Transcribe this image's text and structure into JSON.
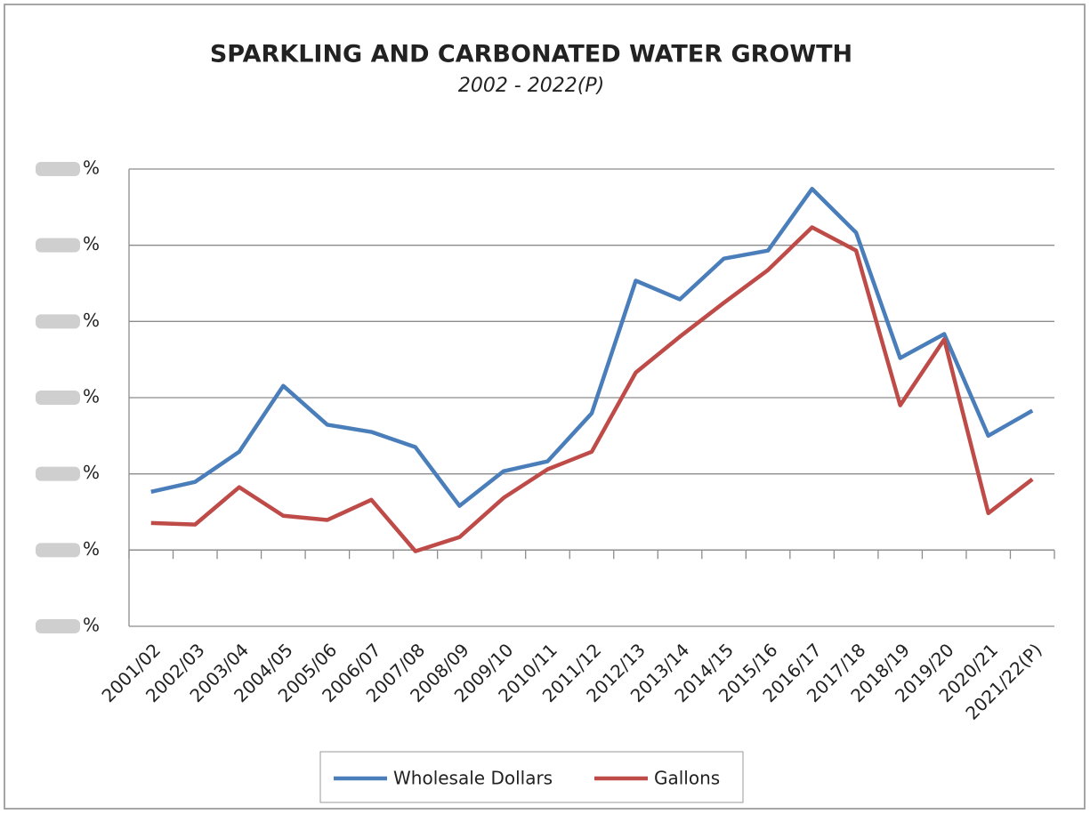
{
  "chart_data": {
    "type": "line",
    "title": "SPARKLING AND CARBONATED WATER GROWTH",
    "subtitle": "2002 - 2022(P)",
    "categories": [
      "2001/02",
      "2002/03",
      "2003/04",
      "2004/05",
      "2005/06",
      "2006/07",
      "2007/08",
      "2008/09",
      "2009/10",
      "2010/11",
      "2011/12",
      "2012/13",
      "2013/14",
      "2014/15",
      "2015/16",
      "2016/17",
      "2017/18",
      "2018/19",
      "2019/20",
      "2020/21",
      "2021/22(P)"
    ],
    "series": [
      {
        "name": "Wholesale Dollars",
        "color": "#4a7ebb",
        "values": [
          -0.47,
          -0.21,
          0.58,
          2.31,
          1.29,
          1.1,
          0.7,
          -0.84,
          0.07,
          0.33,
          1.59,
          5.07,
          4.58,
          5.65,
          5.86,
          7.48,
          6.33,
          3.04,
          3.67,
          1.0,
          1.66
        ]
      },
      {
        "name": "Gallons",
        "color": "#be4b48",
        "values": [
          -1.29,
          -1.33,
          -0.35,
          -1.1,
          -1.21,
          -0.68,
          -2.03,
          -1.66,
          -0.63,
          0.12,
          0.58,
          2.66,
          3.6,
          4.49,
          5.35,
          6.47,
          5.86,
          1.8,
          3.53,
          -1.03,
          -0.14
        ]
      }
    ],
    "ylim": [
      -4,
      8
    ],
    "yticks": [
      {
        "value": -4,
        "label": "%"
      },
      {
        "value": -2,
        "label": "%"
      },
      {
        "value": 0,
        "label": "%"
      },
      {
        "value": 2,
        "label": "%"
      },
      {
        "value": 4,
        "label": "%"
      },
      {
        "value": 6,
        "label": "%"
      },
      {
        "value": 8,
        "label": "%"
      }
    ],
    "x_axis_crosses": -2,
    "grid": true,
    "legend": "bottom"
  }
}
